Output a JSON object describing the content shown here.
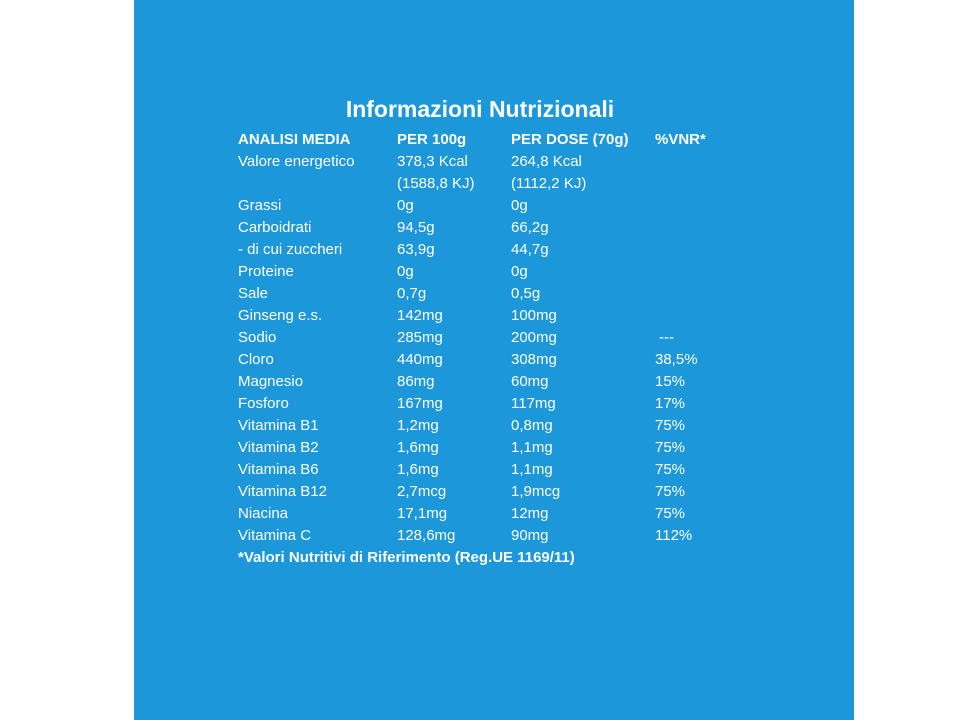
{
  "title": "Informazioni Nutrizionali",
  "table": {
    "header": [
      "ANALISI MEDIA",
      "PER 100g",
      "PER DOSE (70g)",
      "%VNR*"
    ],
    "rows": [
      [
        "Valore energetico",
        [
          "378,3 Kcal",
          "(1588,8 KJ)"
        ],
        [
          "264,8 Kcal",
          "(1112,2 KJ)"
        ]
      ],
      [
        "Grassi",
        "0g",
        "0g"
      ],
      [
        "Carboidrati",
        "94,5g",
        "66,2g"
      ],
      [
        "- di cui zuccheri",
        "63,9g",
        "44,7g"
      ],
      [
        "Proteine",
        "0g",
        "0g"
      ],
      [
        "Sale",
        "0,7g",
        "0,5g"
      ],
      [
        "Ginseng e.s.",
        "142mg",
        "100mg"
      ],
      [
        "Sodio",
        "285mg",
        "200mg",
        "---"
      ],
      [
        "Cloro",
        "440mg",
        "308mg",
        "38,5%"
      ],
      [
        "Magnesio",
        "86mg",
        "60mg",
        "15%"
      ],
      [
        "Fosforo",
        "167mg",
        "117mg",
        "17%"
      ],
      [
        "Vitamina B1",
        "1,2mg",
        "0,8mg",
        "75%"
      ],
      [
        "Vitamina B2",
        "1,6mg",
        "1,1mg",
        "75%"
      ],
      [
        "Vitamina B6",
        "1,6mg",
        "1,1mg",
        "75%"
      ],
      [
        "Vitamina B12",
        "2,7mcg",
        "1,9mcg",
        "75%"
      ],
      [
        "Niacina",
        "17,1mg",
        "12mg",
        "75%"
      ],
      [
        "Vitamina C",
        "128,6mg",
        "90mg",
        "112%"
      ]
    ],
    "footnote": "*Valori Nutritivi di Riferimento (Reg.UE 1169/11)"
  }
}
